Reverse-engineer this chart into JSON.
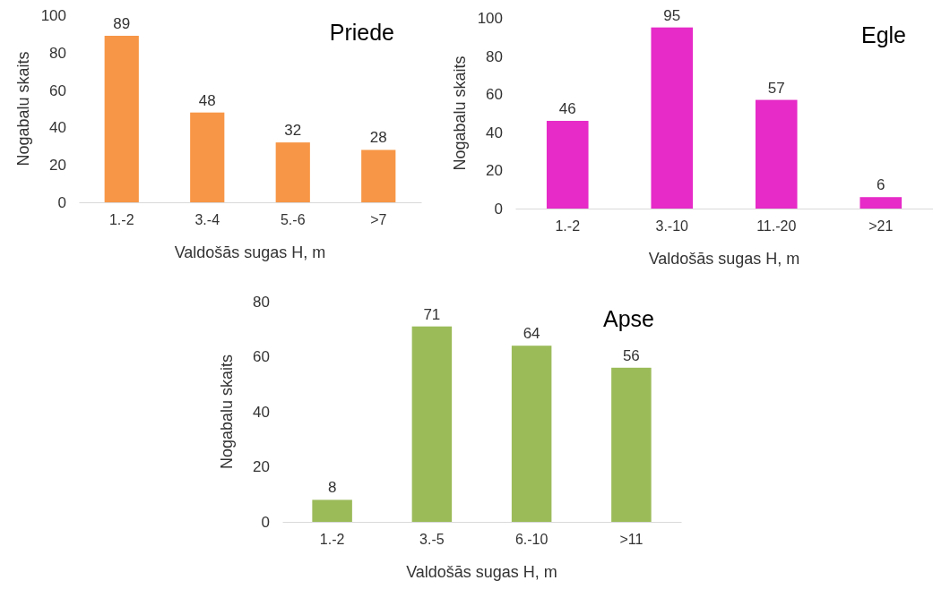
{
  "chart_data": [
    {
      "type": "bar",
      "title": "Priede",
      "xlabel": "Valdošās sugas H, m",
      "ylabel": "Nogabalu skaits",
      "categories": [
        "1.-2",
        "3.-4",
        "5.-6",
        ">7"
      ],
      "values": [
        89,
        48,
        32,
        28
      ],
      "color": "#f79646",
      "ylim": [
        0,
        100
      ],
      "yticks": [
        0,
        20,
        40,
        60,
        80,
        100
      ],
      "grid": false,
      "data_labels": true
    },
    {
      "type": "bar",
      "title": "Egle",
      "xlabel": "Valdošās sugas H, m",
      "ylabel": "Nogabalu skaits",
      "categories": [
        "1.-2",
        "3.-10",
        "11.-20",
        ">21"
      ],
      "values": [
        46,
        95,
        57,
        6
      ],
      "color": "#e62bc8",
      "ylim": [
        0,
        100
      ],
      "yticks": [
        0,
        20,
        40,
        60,
        80,
        100
      ],
      "grid": false,
      "data_labels": true
    },
    {
      "type": "bar",
      "title": "Apse",
      "xlabel": "Valdošās sugas H, m",
      "ylabel": "Nogabalu skaits",
      "categories": [
        "1.-2",
        "3.-5",
        "6.-10",
        ">11"
      ],
      "values": [
        8,
        71,
        64,
        56
      ],
      "color": "#9bbb59",
      "ylim": [
        0,
        80
      ],
      "yticks": [
        0,
        20,
        40,
        60,
        80
      ],
      "grid": false,
      "data_labels": true
    }
  ]
}
